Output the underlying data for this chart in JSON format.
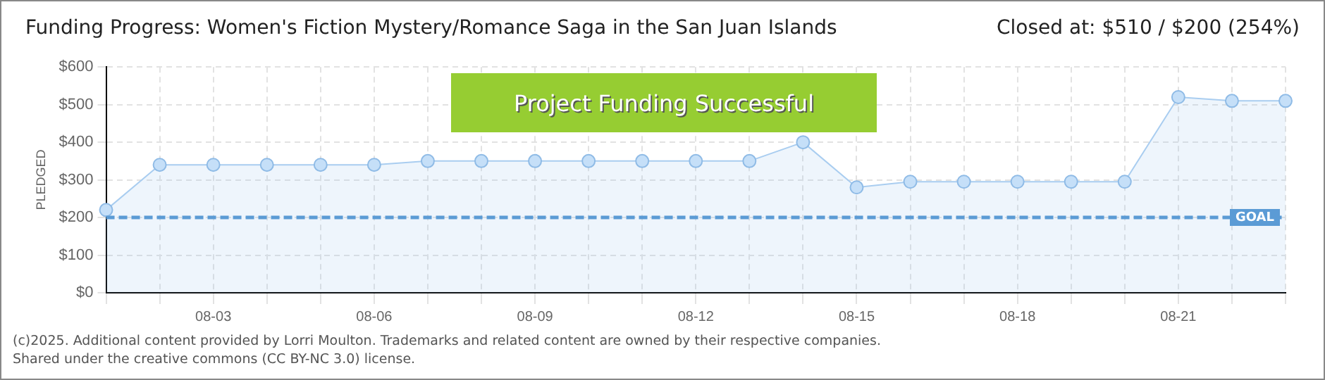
{
  "chart_data": {
    "type": "area",
    "title": "Funding Progress: Women's Fiction Mystery/Romance Saga in the San Juan Islands",
    "subtitle": "Closed at:  $510 /  $200 (254%)",
    "ylabel": "PLEDGED",
    "categories": [
      null,
      null,
      "08-03",
      null,
      null,
      "08-06",
      null,
      null,
      "08-09",
      null,
      null,
      "08-12",
      null,
      null,
      "08-15",
      null,
      null,
      "08-18",
      null,
      null,
      "08-21",
      null,
      null
    ],
    "series": [
      {
        "color": "#a9cdf0",
        "values": [
          220,
          340,
          340,
          340,
          340,
          340,
          350,
          350,
          350,
          350,
          350,
          350,
          350,
          400,
          280,
          295,
          295,
          295,
          295,
          295,
          520,
          510,
          510
        ]
      }
    ],
    "ylim": [
      0,
      600
    ],
    "yticks": [
      {
        "value": 0,
        "label": "$0"
      },
      {
        "value": 100,
        "label": "$100"
      },
      {
        "value": 200,
        "label": "$200"
      },
      {
        "value": 300,
        "label": "$300"
      },
      {
        "value": 400,
        "label": "$400"
      },
      {
        "value": 500,
        "label": "$500"
      },
      {
        "value": 600,
        "label": "$600"
      }
    ],
    "grid": true,
    "marker": "circle",
    "legend": false,
    "ref_lines": [
      {
        "axis": "y",
        "value": 200,
        "label": "GOAL",
        "color": "#5b9bd5",
        "line_style": "dashed"
      }
    ],
    "annotations": [
      "Project Funding Successful",
      "(c)2025. Additional content provided by Lorri Moulton. Trademarks and related content are owned by their respective companies.",
      "Shared under the creative commons (CC BY-NC 3.0) license."
    ]
  }
}
